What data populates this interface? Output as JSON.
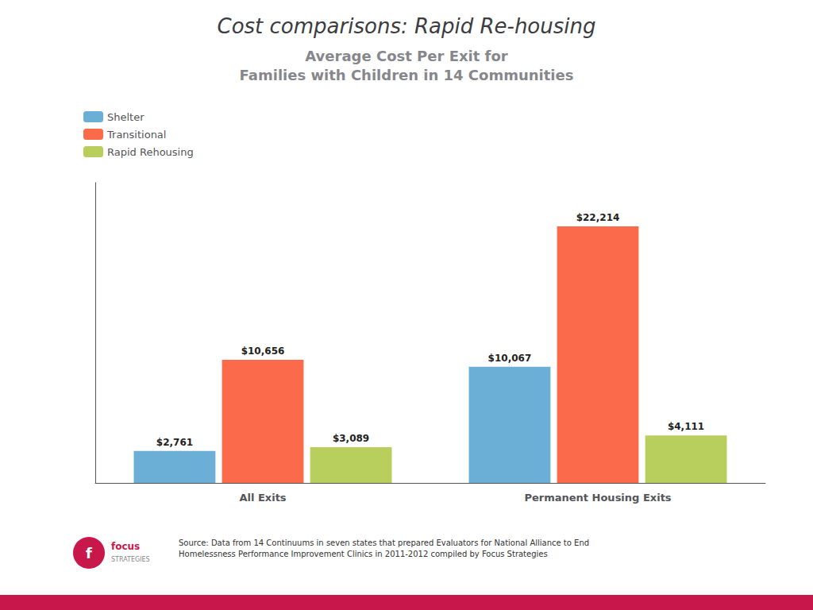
{
  "chart_data": {
    "type": "bar",
    "title": "Cost comparisons: Rapid Re-housing",
    "subtitle": "Average Cost Per Exit for\nFamilies with Children in 14 Communities",
    "categories": [
      "All Exits",
      "Permanent Housing Exits"
    ],
    "series": [
      {
        "name": "Shelter",
        "color": "#6baed6",
        "values": [
          2761,
          10067
        ],
        "value_labels": [
          "$2,761",
          "$10,067"
        ]
      },
      {
        "name": "Transitional",
        "color": "#fb6a4a",
        "values": [
          10656,
          22214
        ],
        "value_labels": [
          "$10,656",
          "$22,214"
        ]
      },
      {
        "name": "Rapid Rehousing",
        "color": "#b8cf5e",
        "values": [
          3089,
          4111
        ],
        "value_labels": [
          "$3,089",
          "$4,111"
        ]
      }
    ],
    "ylim": [
      0,
      26000
    ],
    "tick_labels": "x",
    "grid": false,
    "legend": "upper left",
    "data_labels": true,
    "annotations": [
      "Source: Data from 14 Continuums in seven states that prepared Evaluators for National Alliance to End\nHomelessness Performance Improvement Clinics in 2011-2012 compiled by Focus Strategies",
      "f",
      "focus",
      "STRATEGIES"
    ]
  }
}
